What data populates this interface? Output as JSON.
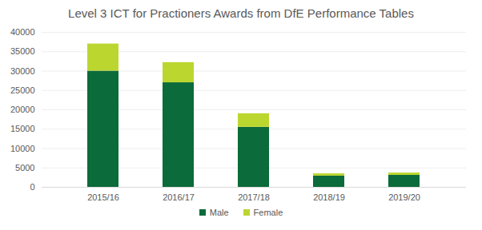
{
  "chart_data": {
    "type": "bar",
    "title": "Level 3 ICT for Practioners Awards from DfE Performance Tables",
    "categories": [
      "2015/16",
      "2016/17",
      "2017/18",
      "2018/19",
      "2019/20"
    ],
    "series": [
      {
        "name": "Male",
        "color": "#0b6b3a",
        "values": [
          30000,
          27000,
          15500,
          2900,
          3100
        ]
      },
      {
        "name": "Female",
        "color": "#bcd630",
        "values": [
          7000,
          5200,
          3500,
          600,
          600
        ]
      }
    ],
    "stacked": true,
    "ylim": [
      0,
      40000
    ],
    "yticks": [
      0,
      5000,
      10000,
      15000,
      20000,
      25000,
      30000,
      35000,
      40000
    ],
    "grid": true,
    "legend": "bottom"
  }
}
